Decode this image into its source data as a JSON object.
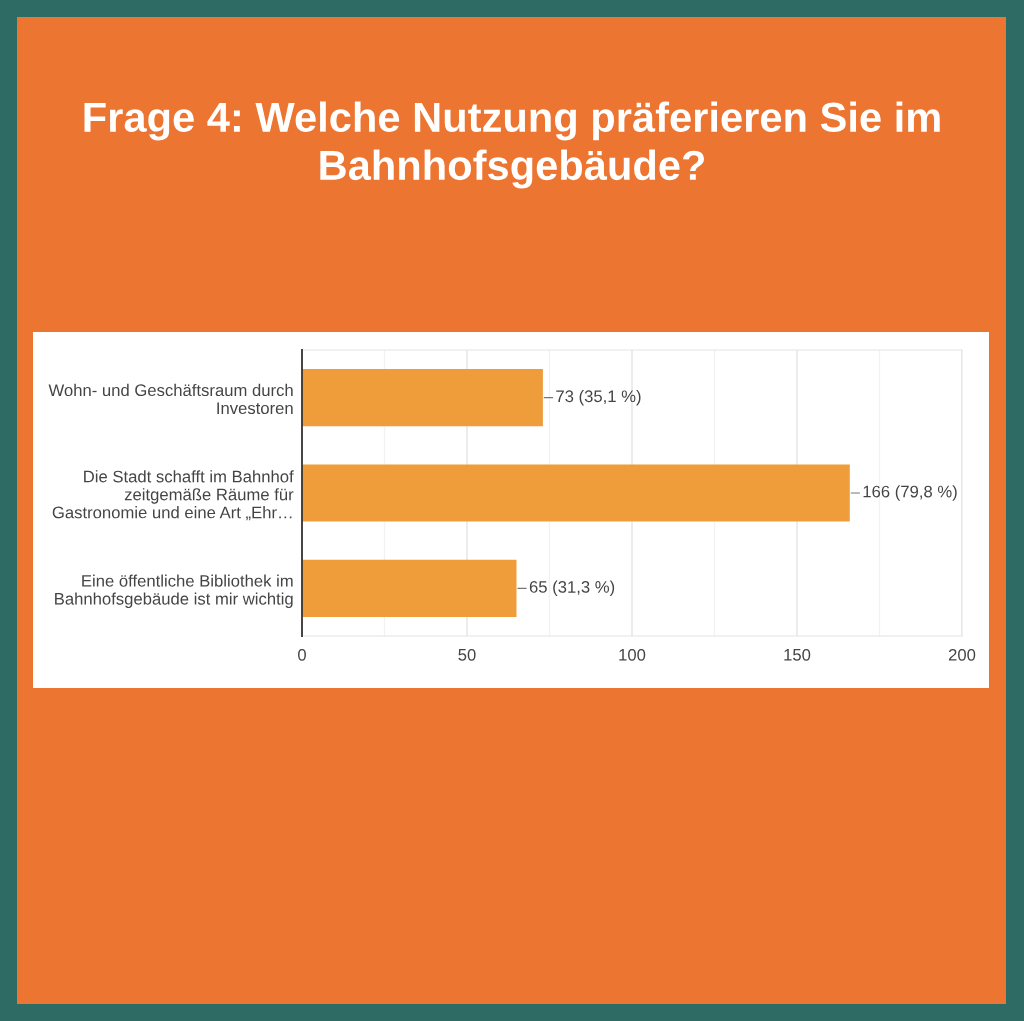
{
  "chart_data": {
    "type": "bar",
    "orientation": "horizontal",
    "title": "Frage 4: Welche Nutzung präferieren Sie im Bahnhofsgebäude?",
    "categories": [
      "Wohn- und Geschäftsraum durch Investoren",
      "Die Stadt schafft im Bahnhof zeitgemäße Räume für Gastronomie und eine Art „Ehr…",
      "Eine öffentliche Bibliothek im Bahnhofsgebäude ist mir wichtig"
    ],
    "values": [
      73,
      166,
      65
    ],
    "value_labels": [
      "73 (35,1 %)",
      "166 (79,8 %)",
      "65 (31,3 %)"
    ],
    "color": "#ef9c3a",
    "xlim": [
      0,
      200
    ],
    "xticks": [
      0,
      {
        "value": 25,
        "label": null
      },
      50,
      {
        "value": 75,
        "label": null
      },
      100,
      {
        "value": 125,
        "label": null
      },
      150,
      {
        "value": 175,
        "label": null
      },
      200
    ],
    "grid": "x"
  }
}
